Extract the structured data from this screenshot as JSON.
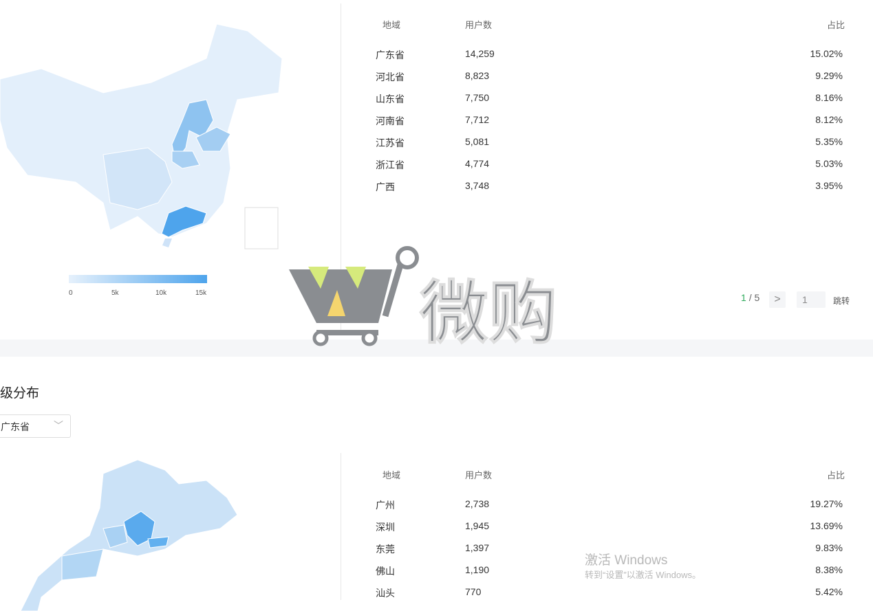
{
  "region_table": {
    "headers": {
      "region": "地域",
      "users": "用户数",
      "ratio": "占比"
    },
    "rows": [
      {
        "region": "广东省",
        "users": "14,259",
        "ratio": "15.02%"
      },
      {
        "region": "河北省",
        "users": "8,823",
        "ratio": "9.29%"
      },
      {
        "region": "山东省",
        "users": "7,750",
        "ratio": "8.16%"
      },
      {
        "region": "河南省",
        "users": "7,712",
        "ratio": "8.12%"
      },
      {
        "region": "江苏省",
        "users": "5,081",
        "ratio": "5.35%"
      },
      {
        "region": "浙江省",
        "users": "4,774",
        "ratio": "5.03%"
      },
      {
        "region": "广西",
        "users": "3,748",
        "ratio": "3.95%"
      }
    ],
    "pagination": {
      "current": "1",
      "separator": "/",
      "total": "5",
      "next": ">",
      "jump_value": "1",
      "jump_label": "跳转"
    }
  },
  "map_legend": {
    "ticks": [
      "0",
      "5k",
      "10k",
      "15k"
    ],
    "colors": {
      "low": "#e6f1fc",
      "high": "#4ea4ec"
    }
  },
  "city_section": {
    "title": "级分布",
    "province_select": "广东省",
    "headers": {
      "region": "地域",
      "users": "用户数",
      "ratio": "占比"
    },
    "rows": [
      {
        "region": "广州",
        "users": "2,738",
        "ratio": "19.27%"
      },
      {
        "region": "深圳",
        "users": "1,945",
        "ratio": "13.69%"
      },
      {
        "region": "东莞",
        "users": "1,397",
        "ratio": "9.83%"
      },
      {
        "region": "佛山",
        "users": "1,190",
        "ratio": "8.38%"
      },
      {
        "region": "汕头",
        "users": "770",
        "ratio": "5.42%"
      }
    ]
  },
  "watermark": {
    "logo_text": "微购"
  },
  "windows_activation": {
    "title": "激活 Windows",
    "subtitle": "转到“设置”以激活 Windows。"
  }
}
